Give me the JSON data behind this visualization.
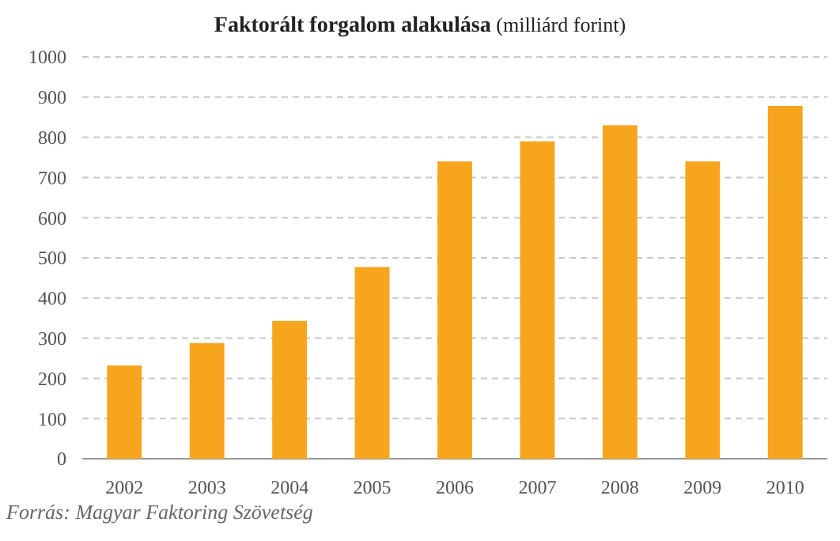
{
  "chart_data": {
    "type": "bar",
    "title": "Faktorált forgalom alakulása",
    "subtitle": "(milliárd forint)",
    "categories": [
      "2002",
      "2003",
      "2004",
      "2005",
      "2006",
      "2007",
      "2008",
      "2009",
      "2010"
    ],
    "values": [
      232,
      288,
      343,
      477,
      740,
      790,
      830,
      740,
      878
    ],
    "color": "#f7a51c",
    "ylim": [
      0,
      1000
    ],
    "yticks": [
      0,
      100,
      200,
      300,
      400,
      500,
      600,
      700,
      800,
      900,
      1000
    ],
    "grid": "y",
    "annotations": [
      "Forrás: Magyar Faktoring Szövetség"
    ]
  }
}
